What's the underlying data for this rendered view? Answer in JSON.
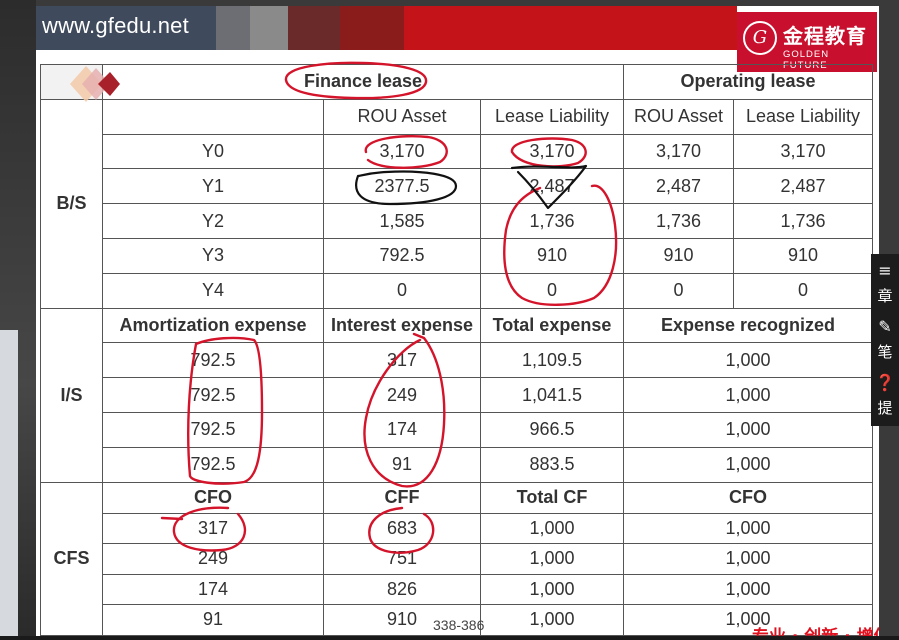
{
  "header": {
    "site_url": "www.gfedu.net"
  },
  "logo": {
    "name_cn": "金程教育",
    "name_en": "GOLDEN FUTURE",
    "seal_glyph": "G",
    "accent_color": "#c8102e"
  },
  "table": {
    "finance_lease": "Finance lease",
    "operating_lease": "Operating lease",
    "bs": {
      "label": "B/S",
      "headers": [
        "ROU Asset",
        "Lease Liability",
        "ROU Asset",
        "Lease Liability"
      ],
      "rows": [
        [
          "Y0",
          "3,170",
          "3,170",
          "3,170",
          "3,170"
        ],
        [
          "Y1",
          "2377.5",
          "2,487",
          "2,487",
          "2,487"
        ],
        [
          "Y2",
          "1,585",
          "1,736",
          "1,736",
          "1,736"
        ],
        [
          "Y3",
          "792.5",
          "910",
          "910",
          "910"
        ],
        [
          "Y4",
          "0",
          "0",
          "0",
          "0"
        ]
      ]
    },
    "is": {
      "label": "I/S",
      "headers": [
        "Amortization expense",
        "Interest expense",
        "Total expense",
        "Expense recognized"
      ],
      "rows": [
        [
          "792.5",
          "317",
          "1,109.5",
          "1,000"
        ],
        [
          "792.5",
          "249",
          "1,041.5",
          "1,000"
        ],
        [
          "792.5",
          "174",
          "966.5",
          "1,000"
        ],
        [
          "792.5",
          "91",
          "883.5",
          "1,000"
        ]
      ]
    },
    "cfs": {
      "label": "CFS",
      "headers": [
        "CFO",
        "CFF",
        "Total CF",
        "CFO"
      ],
      "rows": [
        [
          "317",
          "683",
          "1,000",
          "1,000"
        ],
        [
          "249",
          "751",
          "1,000",
          "1,000"
        ],
        [
          "174",
          "826",
          "1,000",
          "1,000"
        ],
        [
          "91",
          "910",
          "1,000",
          "1,000"
        ]
      ]
    }
  },
  "page_ref": "338-386",
  "slogan": "专业 · 创新 · 增值",
  "toolbar": {
    "chapter": {
      "label": "章",
      "icon": "list-icon"
    },
    "notes": {
      "label": "笔",
      "icon": "pencil-icon"
    },
    "question": {
      "label": "提",
      "icon": "question-icon"
    }
  },
  "annotation_color": "#d4142a"
}
